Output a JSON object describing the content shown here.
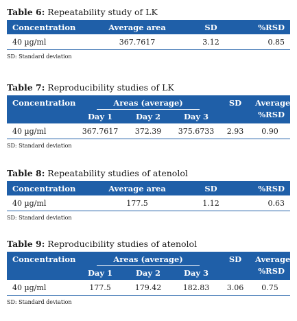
{
  "footnote": "SD: Standard deviation",
  "table6": {
    "label": "Table 6:",
    "title": "Repeatability study of LK",
    "headers": [
      "Concentration",
      "Average area",
      "SD",
      "%RSD"
    ],
    "row": [
      "40 µg/ml",
      "367.7617",
      "3.12",
      "0.85"
    ]
  },
  "table7": {
    "label": "Table 7:",
    "title": "Reproducibility studies of LK",
    "headers": {
      "conc": "Concentration",
      "areas": "Areas (average)",
      "sd": "SD",
      "rsd1": "Average",
      "rsd2": "%RSD"
    },
    "days": [
      "Day 1",
      "Day 2",
      "Day 3"
    ],
    "row": [
      "40 µg/ml",
      "367.7617",
      "372.39",
      "375.6733",
      "2.93",
      "0.90"
    ]
  },
  "table8": {
    "label": "Table 8:",
    "title": "Repeatability studies of atenolol",
    "headers": [
      "Concentration",
      "Average area",
      "SD",
      "%RSD"
    ],
    "row": [
      "40 µg/ml",
      "177.5",
      "1.12",
      "0.63"
    ]
  },
  "table9": {
    "label": "Table 9:",
    "title": "Reproducibility studies of atenolol",
    "headers": {
      "conc": "Concentration",
      "areas": "Areas (average)",
      "sd": "SD",
      "rsd1": "Average",
      "rsd2": "%RSD"
    },
    "days": [
      "Day 1",
      "Day 2",
      "Day 3"
    ],
    "row": [
      "40 µg/ml",
      "177.5",
      "179.42",
      "182.83",
      "3.06",
      "0.75"
    ]
  }
}
